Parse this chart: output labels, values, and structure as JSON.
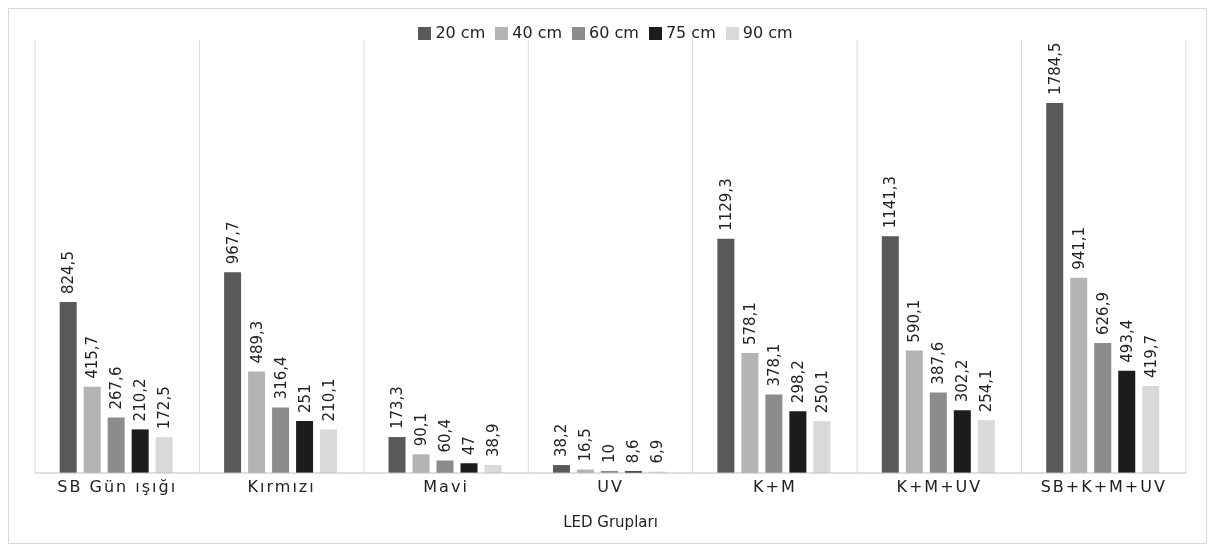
{
  "chart_data": {
    "type": "bar",
    "xlabel": "LED Grupları",
    "categories": [
      "SB Gün ışığı",
      "Kırmızı",
      "Mavi",
      "UV",
      "K+M",
      "K+M+UV",
      "SB+K+M+UV"
    ],
    "series": [
      {
        "name": "20 cm",
        "color": "#595959",
        "values": [
          824.5,
          967.7,
          173.3,
          38.2,
          1129.3,
          1141.3,
          1784.5
        ],
        "value_labels": [
          "824,5",
          "967,7",
          "173,3",
          "38,2",
          "1129,3",
          "1141,3",
          "1784,5"
        ]
      },
      {
        "name": "40 cm",
        "color": "#b4b4b4",
        "values": [
          415.7,
          489.3,
          90.1,
          16.5,
          578.1,
          590.1,
          941.1
        ],
        "value_labels": [
          "415,7",
          "489,3",
          "90,1",
          "16,5",
          "578,1",
          "590,1",
          "941,1"
        ]
      },
      {
        "name": "60 cm",
        "color": "#8c8c8c",
        "values": [
          267.6,
          316.4,
          60.4,
          10,
          378.1,
          387.6,
          626.9
        ],
        "value_labels": [
          "267,6",
          "316,4",
          "60,4",
          "10",
          "378,1",
          "387,6",
          "626,9"
        ]
      },
      {
        "name": "75 cm",
        "color": "#1c1c1c",
        "values": [
          210.2,
          251,
          47,
          8.6,
          298.2,
          302.2,
          493.4
        ],
        "value_labels": [
          "210,2",
          "251",
          "47",
          "8,6",
          "298,2",
          "302,2",
          "493,4"
        ]
      },
      {
        "name": "90 cm",
        "color": "#d9d9d9",
        "values": [
          172.5,
          210.1,
          38.9,
          6.9,
          250.1,
          254.1,
          419.7
        ],
        "value_labels": [
          "172,5",
          "210,1",
          "38,9",
          "6,9",
          "250,1",
          "254,1",
          "419,7"
        ]
      }
    ],
    "grid": "x",
    "legend": "top"
  }
}
